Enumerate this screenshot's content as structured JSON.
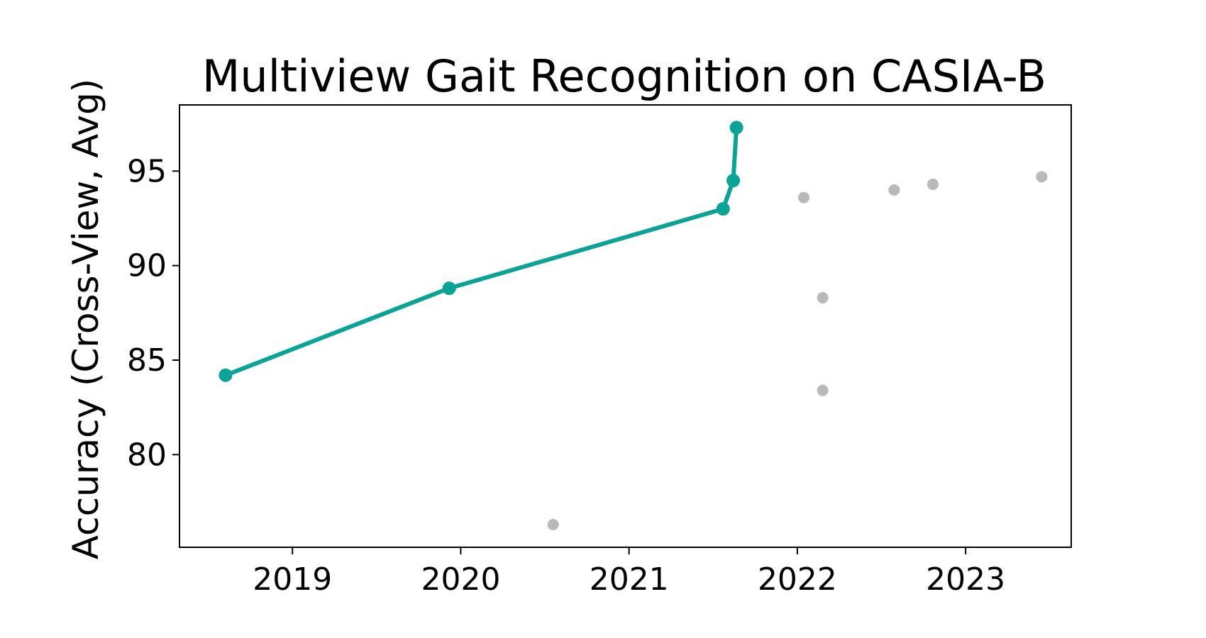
{
  "chart_data": {
    "type": "scatter",
    "title": "Multiview Gait Recognition on CASIA-B",
    "xlabel": "",
    "ylabel": "Accuracy (Cross-View, Avg)",
    "x_ticks": [
      2019,
      2020,
      2021,
      2022,
      2023
    ],
    "y_ticks": [
      80,
      85,
      90,
      95
    ],
    "xlim": [
      "2018-05-01",
      "2023-08-18"
    ],
    "ylim": [
      75.1,
      98.5
    ],
    "grid": false,
    "legend": "none",
    "colors": {
      "sota": "#0aa396",
      "other": "#b9b9b9"
    },
    "series": [
      {
        "role": "sota",
        "style": "line-markers",
        "points": [
          {
            "x": "2018-08-09",
            "y": 84.2
          },
          {
            "x": "2019-12-07",
            "y": 88.8
          },
          {
            "x": "2021-07-24",
            "y": 93.0
          },
          {
            "x": "2021-08-15",
            "y": 94.5
          },
          {
            "x": "2021-08-22",
            "y": 97.3
          }
        ]
      },
      {
        "role": "other",
        "style": "markers",
        "points": [
          {
            "x": "2020-07-20",
            "y": 76.3
          },
          {
            "x": "2022-01-15",
            "y": 93.6
          },
          {
            "x": "2022-02-25",
            "y": 88.3
          },
          {
            "x": "2022-02-25",
            "y": 83.4
          },
          {
            "x": "2022-07-30",
            "y": 94.0
          },
          {
            "x": "2022-10-22",
            "y": 94.3
          },
          {
            "x": "2023-06-15",
            "y": 94.7
          }
        ]
      }
    ]
  }
}
